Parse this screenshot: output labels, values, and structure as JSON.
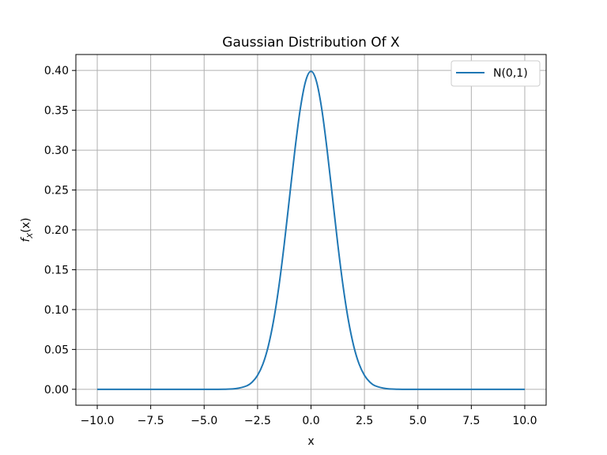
{
  "chart_data": {
    "type": "line",
    "title": "Gaussian Distribution Of X",
    "xlabel": "x",
    "ylabel": "f_X(x)",
    "ylabel_parts": {
      "f": "f",
      "sub": "X",
      "arg": "(x)"
    },
    "xlim": [
      -11,
      11
    ],
    "ylim": [
      -0.02,
      0.42
    ],
    "xticks": [
      -10.0,
      -7.5,
      -5.0,
      -2.5,
      0.0,
      2.5,
      5.0,
      7.5,
      10.0
    ],
    "xtick_labels": [
      "−10.0",
      "−7.5",
      "−5.0",
      "−2.5",
      "0.0",
      "2.5",
      "5.0",
      "7.5",
      "10.0"
    ],
    "yticks": [
      0.0,
      0.05,
      0.1,
      0.15,
      0.2,
      0.25,
      0.3,
      0.35,
      0.4
    ],
    "ytick_labels": [
      "0.00",
      "0.05",
      "0.10",
      "0.15",
      "0.20",
      "0.25",
      "0.30",
      "0.35",
      "0.40"
    ],
    "grid": true,
    "legend_position": "top-right",
    "series": [
      {
        "name": "N(0,1)",
        "color": "#1f77b4",
        "x": [
          -10.0,
          -5.0,
          -4.0,
          -3.5,
          -3.0,
          -2.75,
          -2.5,
          -2.25,
          -2.0,
          -1.75,
          -1.5,
          -1.25,
          -1.0,
          -0.75,
          -0.5,
          -0.25,
          0.0,
          0.25,
          0.5,
          0.75,
          1.0,
          1.25,
          1.5,
          1.75,
          2.0,
          2.25,
          2.5,
          2.75,
          3.0,
          3.5,
          4.0,
          5.0,
          10.0
        ],
        "y": [
          0.0,
          0.0,
          0.0001,
          0.0009,
          0.0044,
          0.0091,
          0.0175,
          0.0317,
          0.054,
          0.0863,
          0.1295,
          0.1826,
          0.242,
          0.3011,
          0.3521,
          0.3867,
          0.3989,
          0.3867,
          0.3521,
          0.3011,
          0.242,
          0.1826,
          0.1295,
          0.0863,
          0.054,
          0.0317,
          0.0175,
          0.0091,
          0.0044,
          0.0009,
          0.0001,
          0.0,
          0.0
        ]
      }
    ]
  }
}
